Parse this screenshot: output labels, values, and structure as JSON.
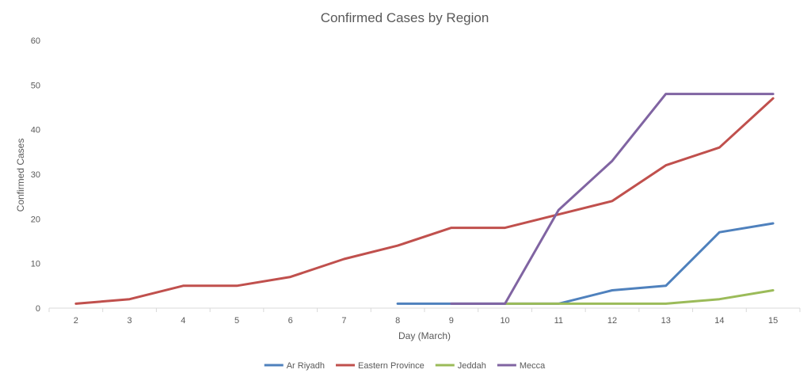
{
  "chart_data": {
    "type": "line",
    "title": "Confirmed Cases by Region",
    "xlabel": "Day (March)",
    "ylabel": "Confirmed Cases",
    "categories": [
      "2",
      "3",
      "4",
      "5",
      "6",
      "7",
      "8",
      "9",
      "10",
      "11",
      "12",
      "13",
      "14",
      "15"
    ],
    "ylim": [
      0,
      60
    ],
    "yticks": [
      0,
      10,
      20,
      30,
      40,
      50,
      60
    ],
    "grid": false,
    "legend_position": "bottom",
    "series": [
      {
        "name": "Ar Riyadh",
        "color": "#4f81bd",
        "values": [
          null,
          null,
          null,
          null,
          null,
          null,
          1,
          1,
          1,
          1,
          4,
          5,
          17,
          19
        ]
      },
      {
        "name": "Eastern Province",
        "color": "#c0504d",
        "values": [
          1,
          2,
          5,
          5,
          7,
          11,
          14,
          18,
          18,
          21,
          24,
          32,
          36,
          47
        ]
      },
      {
        "name": "Jeddah",
        "color": "#9bbb59",
        "values": [
          null,
          null,
          null,
          null,
          null,
          null,
          null,
          null,
          1,
          1,
          1,
          1,
          2,
          4
        ]
      },
      {
        "name": "Mecca",
        "color": "#8064a2",
        "values": [
          null,
          null,
          null,
          null,
          null,
          null,
          null,
          1,
          1,
          22,
          33,
          48,
          48,
          48
        ]
      }
    ]
  }
}
